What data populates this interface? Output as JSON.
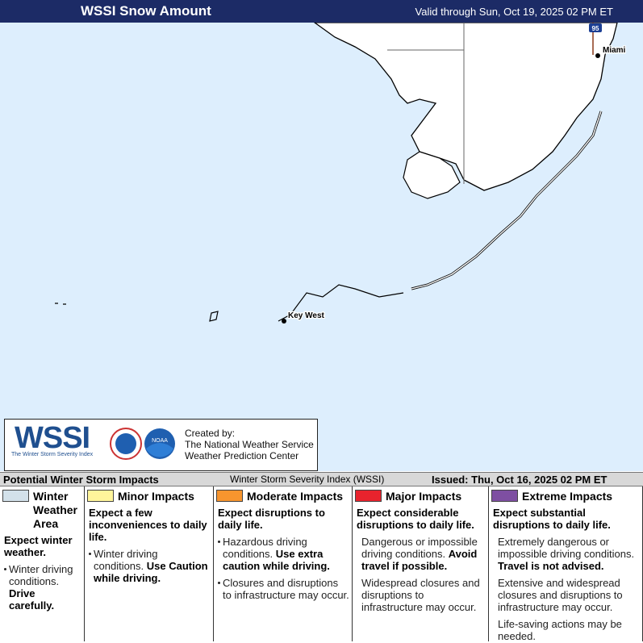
{
  "header": {
    "title": "WSSI Snow Amount",
    "valid": "Valid through Sun, Oct 19, 2025 02 PM ET"
  },
  "map": {
    "labels": {
      "highway": "95",
      "miami": "Miami",
      "key_west": "Key West"
    }
  },
  "logo": {
    "wordmark": "WSSI",
    "tagline": "The Winter Storm Severity Index",
    "agency": "NOAA",
    "credit": [
      "Created by:",
      "The National Weather Service",
      "Weather Prediction Center"
    ]
  },
  "legend_bar": {
    "title": "Potential Winter Storm Impacts",
    "index": "Winter Storm Severity Index (WSSI)",
    "issued": "Issued: Thu, Oct 16, 2025 02 PM ET"
  },
  "legend": [
    {
      "title": "Winter Weather Area",
      "color": "#d3e1ea",
      "lead": "Expect winter weather.",
      "bullets": [
        {
          "text": "Winter driving conditions.",
          "emphasis": "Drive carefully."
        }
      ]
    },
    {
      "title": "Minor Impacts",
      "color": "#fff59b",
      "lead": "Expect a few inconveniences to daily life.",
      "bullets": [
        {
          "text": "Winter driving conditions.",
          "emphasis": "Use Caution while driving."
        }
      ]
    },
    {
      "title": "Moderate Impacts",
      "color": "#f7952e",
      "lead": "Expect disruptions to daily life.",
      "bullets": [
        {
          "text": "Hazardous driving conditions.",
          "emphasis": "Use extra caution while driving."
        },
        {
          "text": "Closures and disruptions to infrastructure may occur."
        }
      ]
    },
    {
      "title": "Major Impacts",
      "color": "#e8232d",
      "lead": "Expect considerable disruptions to daily life.",
      "bullets": [
        {
          "text": "Dangerous or impossible driving conditions.",
          "emphasis": "Avoid travel if possible."
        },
        {
          "text": "Widespread closures and disruptions to infrastructure may occur."
        }
      ]
    },
    {
      "title": "Extreme Impacts",
      "color": "#7e4fa2",
      "lead": "Expect substantial disruptions to daily life.",
      "bullets": [
        {
          "text": "Extremely dangerous or impossible driving conditions.",
          "emphasis": "Travel is not advised."
        },
        {
          "text": "Extensive and widespread closures and disruptions to infrastructure may occur."
        },
        {
          "text": "Life-saving actions may be needed."
        }
      ]
    }
  ]
}
